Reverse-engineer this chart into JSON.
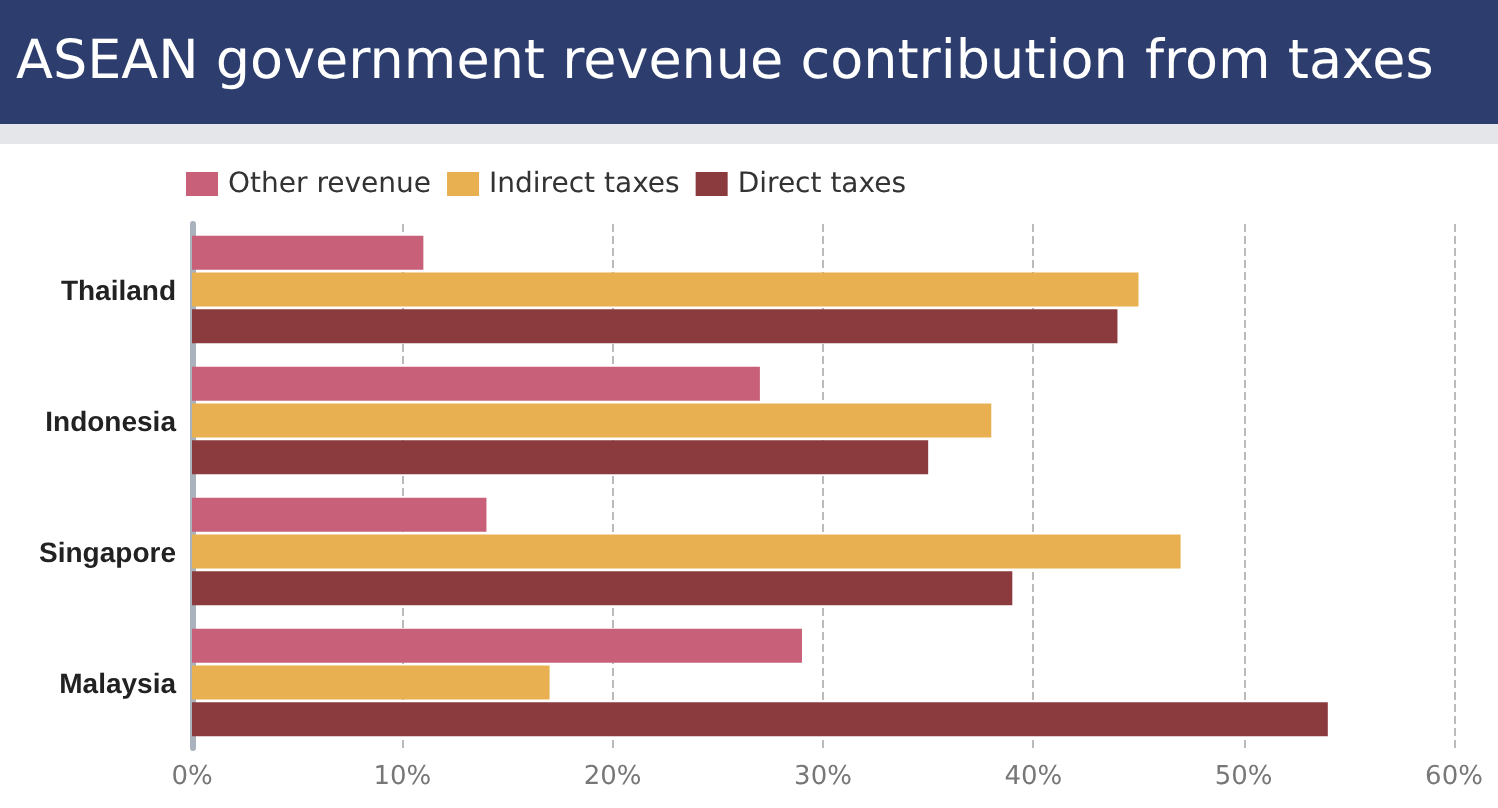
{
  "chart_data": {
    "type": "bar",
    "orientation": "horizontal",
    "title": "ASEAN government revenue contribution from taxes",
    "categories": [
      "Thailand",
      "Indonesia",
      "Singapore",
      "Malaysia"
    ],
    "series": [
      {
        "name": "Other revenue",
        "color": "#c9607a",
        "values": [
          11,
          27,
          14,
          29
        ]
      },
      {
        "name": "Indirect taxes",
        "color": "#e8b050",
        "values": [
          45,
          38,
          47,
          17
        ]
      },
      {
        "name": "Direct taxes",
        "color": "#8b3a3e",
        "values": [
          44,
          35,
          39,
          54
        ]
      }
    ],
    "xlim": [
      0,
      60
    ],
    "xticks": [
      {
        "value": 0,
        "label": "0%"
      },
      {
        "value": 10,
        "label": "10%"
      },
      {
        "value": 20,
        "label": "20%"
      },
      {
        "value": 30,
        "label": "30%"
      },
      {
        "value": 40,
        "label": "40%"
      },
      {
        "value": 50,
        "label": "50%"
      },
      {
        "value": 60,
        "label": "60%"
      }
    ],
    "grid": "x",
    "legend": "top left"
  }
}
